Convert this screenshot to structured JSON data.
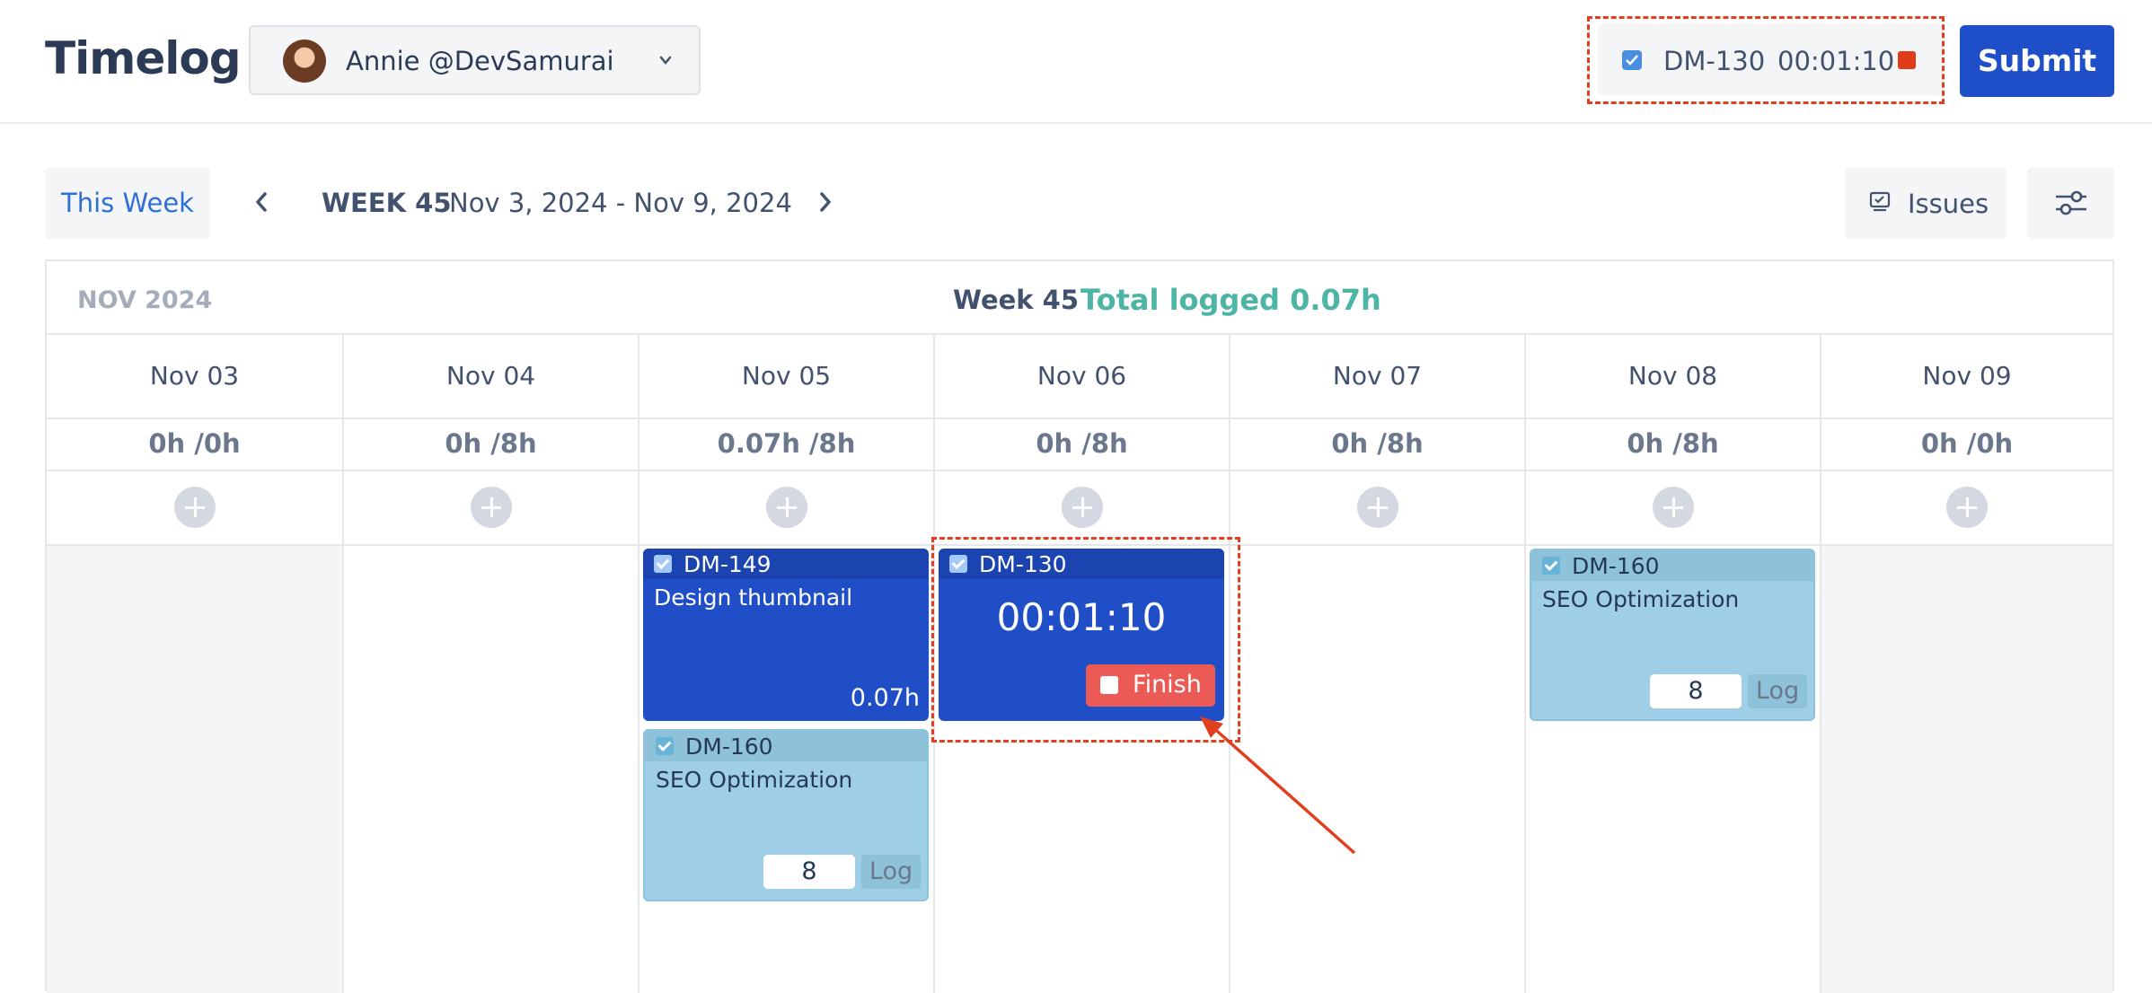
{
  "header": {
    "title": "Timelog",
    "user": {
      "name": "Annie @DevSamurai"
    },
    "timer": {
      "issue_key": "DM-130",
      "elapsed": "00:01:10"
    },
    "submit_label": "Submit"
  },
  "toolbar": {
    "this_week_label": "This Week",
    "week_label": "WEEK 45",
    "week_range": "Nov 3, 2024 - Nov 9, 2024",
    "issues_label": "Issues"
  },
  "calendar": {
    "month": "NOV 2024",
    "week_title": "Week 45",
    "total_logged": "Total logged 0.07h",
    "days": [
      {
        "name": "Nov 03",
        "hours": "0h /0h"
      },
      {
        "name": "Nov 04",
        "hours": "0h /8h"
      },
      {
        "name": "Nov 05",
        "hours": "0.07h /8h"
      },
      {
        "name": "Nov 06",
        "hours": "0h /8h"
      },
      {
        "name": "Nov 07",
        "hours": "0h /8h"
      },
      {
        "name": "Nov 08",
        "hours": "0h /8h"
      },
      {
        "name": "Nov 09",
        "hours": "0h /0h"
      }
    ],
    "cards": {
      "nov05_dm149": {
        "key": "DM-149",
        "title": "Design thumbnail",
        "hours": "0.07h"
      },
      "nov05_dm160": {
        "key": "DM-160",
        "title": "SEO Optimization",
        "log_value": "8",
        "log_label": "Log"
      },
      "nov06_dm130": {
        "key": "DM-130",
        "timer": "00:01:10",
        "finish_label": "Finish"
      },
      "nov08_dm160": {
        "key": "DM-160",
        "title": "SEO Optimization",
        "log_value": "8",
        "log_label": "Log"
      }
    }
  },
  "colors": {
    "primary": "#1f4ec9",
    "accent_total": "#4db5a5",
    "running_card": "#204ec6",
    "suggested_card": "#9fcfe6",
    "finish": "#ec5a55",
    "annotation": "#e0401f"
  },
  "icons": [
    "chevron-down-icon",
    "checkbox-icon",
    "stop-icon",
    "chevron-left-icon",
    "chevron-right-icon",
    "issues-icon",
    "filter-icon",
    "plus-icon"
  ]
}
